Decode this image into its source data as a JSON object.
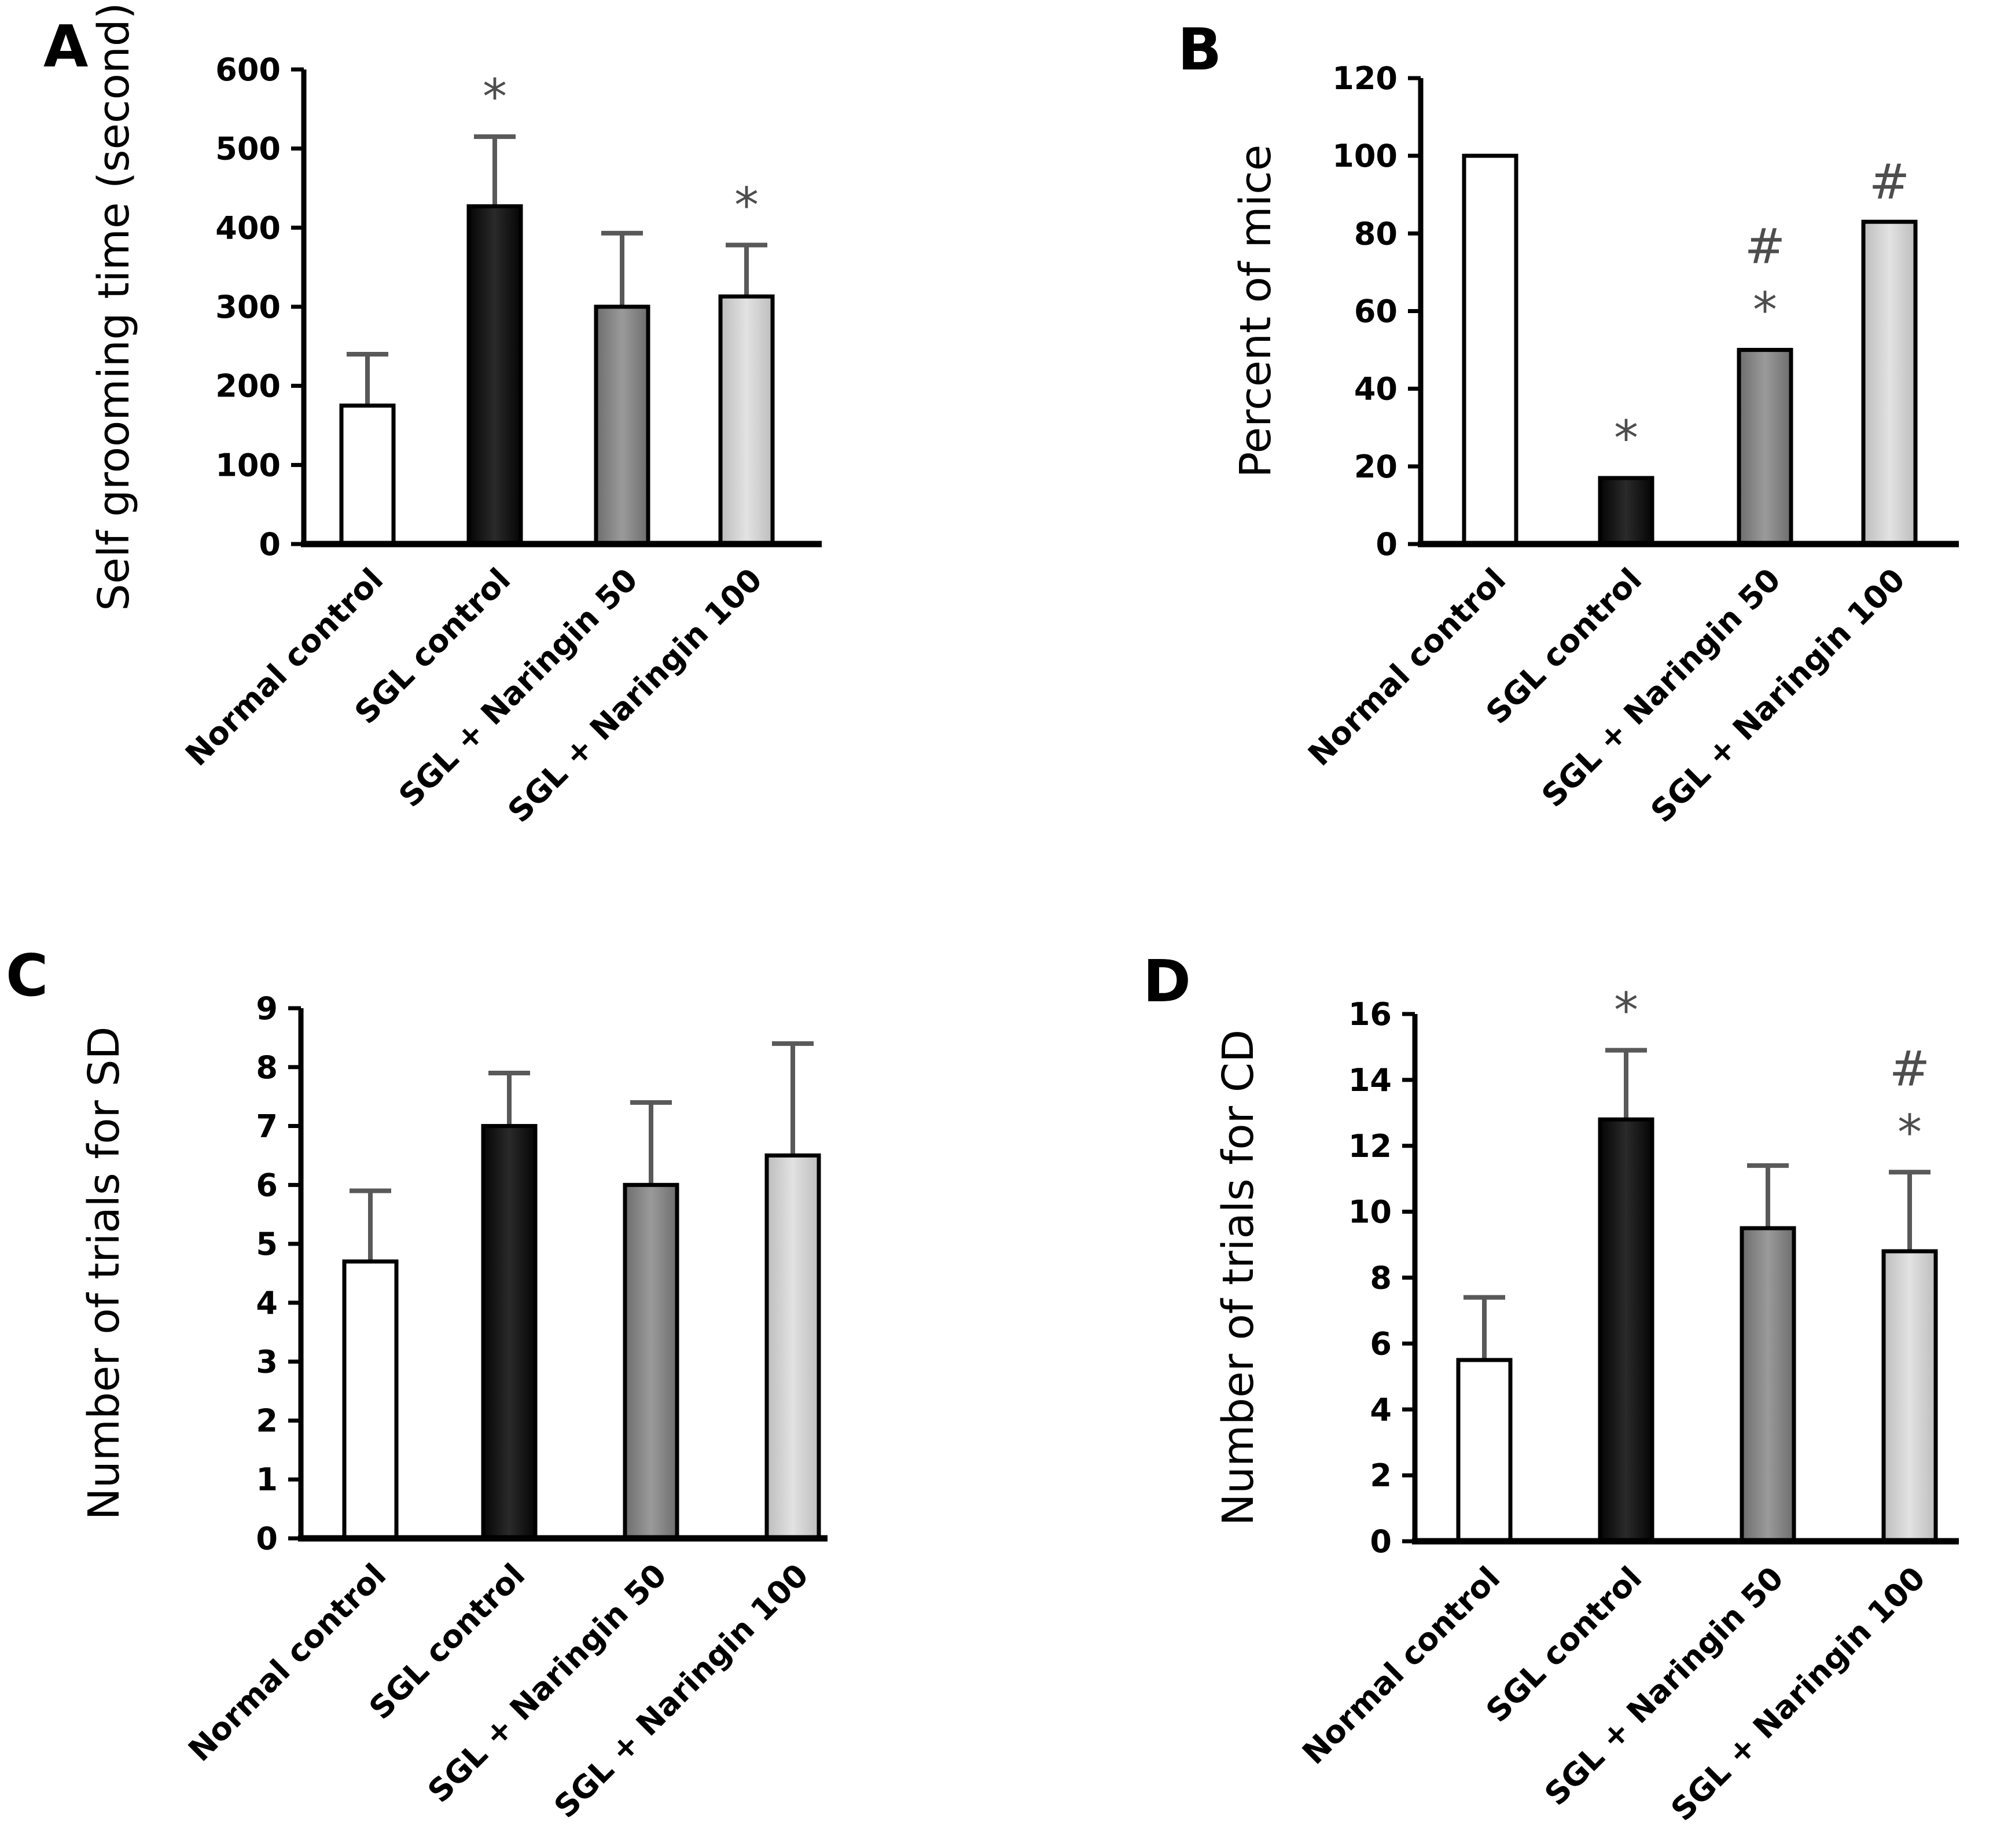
{
  "chart_data": [
    {
      "type": "bar",
      "panel": "A",
      "categories": [
        "Normal control",
        "SGL control",
        "SGL + Naringin 50",
        "SGL + Naringin 100"
      ],
      "values": [
        175,
        427,
        300,
        313
      ],
      "errors": [
        65,
        88,
        93,
        65
      ],
      "annotations": [
        [],
        [
          "*"
        ],
        [],
        [
          "*"
        ]
      ],
      "ylabel": "Self grooming time (second)",
      "ylim": [
        0,
        600
      ],
      "yticks": [
        0,
        100,
        200,
        300,
        400,
        500,
        600
      ]
    },
    {
      "type": "bar",
      "panel": "B",
      "categories": [
        "Normal control",
        "SGL control",
        "SGL + Naringin 50",
        "SGL + Naringin 100"
      ],
      "values": [
        100,
        17,
        50,
        83
      ],
      "errors": [
        0,
        0,
        0,
        0
      ],
      "annotations": [
        [],
        [
          "*"
        ],
        [
          "*",
          "#"
        ],
        [
          "#"
        ]
      ],
      "ylabel": "Percent of mice",
      "ylim": [
        0,
        120
      ],
      "yticks": [
        0,
        20,
        40,
        60,
        80,
        100,
        120
      ]
    },
    {
      "type": "bar",
      "panel": "C",
      "categories": [
        "Normal control",
        "SGL control",
        "SGL + Naringin 50",
        "SGL + Naringin 100"
      ],
      "values": [
        4.7,
        7.0,
        6.0,
        6.5
      ],
      "errors": [
        1.2,
        0.9,
        1.4,
        1.9
      ],
      "annotations": [
        [],
        [],
        [],
        []
      ],
      "ylabel": "Number of trials for SD",
      "ylim": [
        0,
        9
      ],
      "yticks": [
        0,
        1,
        2,
        3,
        4,
        5,
        6,
        7,
        8,
        9
      ]
    },
    {
      "type": "bar",
      "panel": "D",
      "categories": [
        "Normal control",
        "SGL control",
        "SGL + Naringin 50",
        "SGL + Naringin 100"
      ],
      "values": [
        5.5,
        12.8,
        9.5,
        8.8
      ],
      "errors": [
        1.9,
        2.1,
        1.9,
        2.4
      ],
      "annotations": [
        [],
        [
          "*"
        ],
        [],
        [
          "*",
          "#"
        ]
      ],
      "ylabel": "Number of trials for CD",
      "ylim": [
        0,
        16
      ],
      "yticks": [
        0,
        2,
        4,
        6,
        8,
        10,
        12,
        14,
        16
      ]
    }
  ],
  "colors": {
    "Normal control": "#ffffff",
    "SGL control": "#0d0d0d",
    "SGL + Naringin 50": "#808080",
    "SGL + Naringin 100": "#c8c8c8",
    "axis": "#000000",
    "error_bar": "#595959",
    "annotation": "#4d4d4d"
  }
}
